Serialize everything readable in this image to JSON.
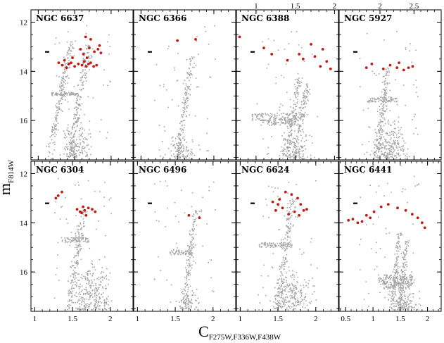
{
  "chart_data": {
    "type": "scatter",
    "xlabel_main": "C",
    "xlabel_sub": "F275W,F336W,F438W",
    "ylabel_main": "m",
    "ylabel_sub": "F814W",
    "y_ticks": [
      12,
      14,
      16
    ],
    "ylim": [
      11.5,
      17.6
    ],
    "colors": {
      "field_stars": "#a6a6a6",
      "selected_stars": "#c01a14",
      "frame": "#000000"
    },
    "panels": [
      {
        "name": "NGC 6637",
        "xlim": [
          0.9,
          2.3
        ],
        "x_ticks": [
          1,
          1.5,
          2
        ],
        "tick_labels_at": "bottom",
        "features": {
          "rgb_branches": [
            [
              1.45,
              1.15,
              12.8,
              17.5
            ],
            [
              1.69,
              1.43,
              12.9,
              17.5
            ]
          ],
          "hb": [
            [
              1.18,
              1.55,
              14.85,
              15.0
            ]
          ],
          "ms": [
            1.25,
            1.8,
            15.9,
            17.5
          ],
          "red_points": [
            [
              1.28,
              13.65
            ],
            [
              1.33,
              13.75
            ],
            [
              1.36,
              13.55
            ],
            [
              1.39,
              13.85
            ],
            [
              1.42,
              13.7
            ],
            [
              1.45,
              13.65
            ],
            [
              1.5,
              13.8
            ],
            [
              1.55,
              13.7
            ],
            [
              1.6,
              13.75
            ],
            [
              1.63,
              13.6
            ],
            [
              1.66,
              13.8
            ],
            [
              1.69,
              13.7
            ],
            [
              1.72,
              13.65
            ],
            [
              1.76,
              13.8
            ],
            [
              1.8,
              13.75
            ],
            [
              1.65,
              12.6
            ],
            [
              1.72,
              12.7
            ],
            [
              1.7,
              13.05
            ],
            [
              1.77,
              13.2
            ],
            [
              1.82,
              13.1
            ],
            [
              1.86,
              13.25
            ],
            [
              1.58,
              13.1
            ],
            [
              1.62,
              13.3
            ],
            [
              1.84,
              12.95
            ],
            [
              1.47,
              13.45
            ],
            [
              1.67,
              13.45
            ]
          ]
        }
      },
      {
        "name": "NGC 6366",
        "xlim": [
          0.9,
          2.3
        ],
        "x_ticks": [
          1,
          1.5,
          2
        ],
        "tick_labels_at": "none",
        "features": {
          "rgb_branches": [
            [
              1.72,
              1.5,
              13.4,
              17.5
            ]
          ],
          "hb": [],
          "ms": [
            1.3,
            1.8,
            16.6,
            17.55
          ],
          "red_points": [
            [
              1.5,
              12.75
            ],
            [
              1.75,
              12.7
            ]
          ]
        }
      },
      {
        "name": "NGC 6388",
        "xlim": [
          0.75,
          2.05
        ],
        "x_ticks": [
          1,
          1.5,
          2
        ],
        "tick_labels_at": "top",
        "features": {
          "rgb_branches": [
            [
              1.55,
              1.38,
              14.2,
              17.5
            ],
            [
              1.65,
              1.5,
              14.5,
              17.5
            ]
          ],
          "hb": [
            [
              0.95,
              1.62,
              15.7,
              16.0
            ],
            [
              1.05,
              1.55,
              15.95,
              16.2
            ]
          ],
          "ms": [
            1.25,
            1.7,
            16.3,
            17.55
          ],
          "red_points": [
            [
              0.79,
              12.6
            ],
            [
              1.1,
              13.05
            ],
            [
              1.2,
              13.3
            ],
            [
              1.4,
              13.55
            ],
            [
              1.55,
              13.3
            ],
            [
              1.7,
              12.9
            ],
            [
              1.85,
              13.1
            ],
            [
              1.6,
              13.5
            ],
            [
              1.75,
              13.4
            ],
            [
              1.9,
              13.6
            ],
            [
              1.95,
              13.9
            ],
            [
              1.82,
              13.8
            ]
          ]
        }
      },
      {
        "name": "NGC 5927",
        "xlim": [
          1.4,
          2.9
        ],
        "x_ticks": [
          2,
          2.5
        ],
        "tick_labels_at": "top",
        "features": {
          "rgb_branches": [
            [
              2.12,
              1.95,
              13.8,
              17.5
            ]
          ],
          "hb": [
            [
              1.8,
              2.25,
              15.05,
              15.25
            ]
          ],
          "ms": [
            1.75,
            2.5,
            15.9,
            17.55
          ],
          "red_points": [
            [
              1.8,
              13.85
            ],
            [
              1.88,
              13.7
            ],
            [
              2.05,
              13.9
            ],
            [
              2.15,
              13.75
            ],
            [
              2.25,
              13.85
            ],
            [
              2.35,
              13.95
            ],
            [
              2.42,
              13.85
            ],
            [
              2.48,
              13.8
            ],
            [
              2.28,
              13.65
            ]
          ]
        }
      },
      {
        "name": "NGC 6304",
        "xlim": [
          0.95,
          2.3
        ],
        "x_ticks": [
          1,
          1.5,
          2
        ],
        "tick_labels_at": "bottom",
        "features": {
          "rgb_branches": [
            [
              1.65,
              1.45,
              13.5,
              17.5
            ]
          ],
          "hb": [
            [
              1.35,
              1.72,
              14.6,
              14.8
            ]
          ],
          "ms": [
            1.4,
            2.1,
            15.5,
            17.55
          ],
          "red_points": [
            [
              1.28,
              13.0
            ],
            [
              1.31,
              12.9
            ],
            [
              1.36,
              12.75
            ],
            [
              1.56,
              13.45
            ],
            [
              1.62,
              13.6
            ],
            [
              1.64,
              13.35
            ],
            [
              1.66,
              13.5
            ],
            [
              1.71,
              13.4
            ],
            [
              1.76,
              13.45
            ],
            [
              1.8,
              13.55
            ],
            [
              1.68,
              13.7
            ],
            [
              1.6,
              13.55
            ]
          ]
        }
      },
      {
        "name": "NGC 6496",
        "xlim": [
          0.95,
          2.3
        ],
        "x_ticks": [
          1,
          1.5,
          2
        ],
        "tick_labels_at": "bottom",
        "features": {
          "rgb_branches": [
            [
              1.78,
              1.6,
              13.5,
              17.5
            ]
          ],
          "hb": [
            [
              1.42,
              1.72,
              15.1,
              15.3
            ]
          ],
          "ms": [
            1.5,
            1.85,
            16.6,
            17.55
          ],
          "red_points": [
            [
              1.68,
              13.7
            ],
            [
              1.82,
              13.8
            ]
          ]
        }
      },
      {
        "name": "NGC 6624",
        "xlim": [
          0.95,
          2.3
        ],
        "x_ticks": [
          1,
          1.5,
          2
        ],
        "tick_labels_at": "bottom",
        "features": {
          "rgb_branches": [
            [
              1.7,
              1.5,
              13.0,
              17.5
            ]
          ],
          "hb": [
            [
              1.25,
              1.7,
              14.8,
              15.0
            ]
          ],
          "ms": [
            1.35,
            2.0,
            15.9,
            17.55
          ],
          "red_points": [
            [
              1.43,
              13.15
            ],
            [
              1.52,
              13.05
            ],
            [
              1.6,
              12.75
            ],
            [
              1.68,
              12.85
            ],
            [
              1.76,
              13.0
            ],
            [
              1.8,
              13.25
            ],
            [
              1.47,
              13.5
            ],
            [
              1.56,
              13.4
            ],
            [
              1.64,
              13.65
            ],
            [
              1.72,
              13.55
            ],
            [
              1.78,
              13.7
            ],
            [
              1.84,
              13.5
            ],
            [
              1.88,
              13.45
            ],
            [
              1.5,
              13.25
            ]
          ]
        }
      },
      {
        "name": "NGC 6441",
        "xlim": [
          0.38,
          2.25
        ],
        "x_ticks": [
          0.5,
          1,
          1.5,
          2
        ],
        "tick_labels_at": "bottom",
        "features": {
          "rgb_branches": [
            [
              1.5,
              1.35,
              14.4,
              17.5
            ],
            [
              1.62,
              1.48,
              14.7,
              17.5
            ]
          ],
          "hb": [
            [
              1.1,
              1.75,
              16.1,
              16.5
            ],
            [
              1.2,
              1.7,
              16.4,
              16.7
            ]
          ],
          "ms": [
            1.2,
            1.9,
            16.6,
            17.55
          ],
          "red_points": [
            [
              0.55,
              13.9
            ],
            [
              0.63,
              13.85
            ],
            [
              0.72,
              14.0
            ],
            [
              0.8,
              13.95
            ],
            [
              0.88,
              13.7
            ],
            [
              0.95,
              13.8
            ],
            [
              1.02,
              13.55
            ],
            [
              1.15,
              13.35
            ],
            [
              1.28,
              13.25
            ],
            [
              1.45,
              13.4
            ],
            [
              1.6,
              13.5
            ],
            [
              1.72,
              13.65
            ],
            [
              1.82,
              13.8
            ],
            [
              1.9,
              14.0
            ],
            [
              1.95,
              14.2
            ]
          ]
        }
      }
    ]
  }
}
